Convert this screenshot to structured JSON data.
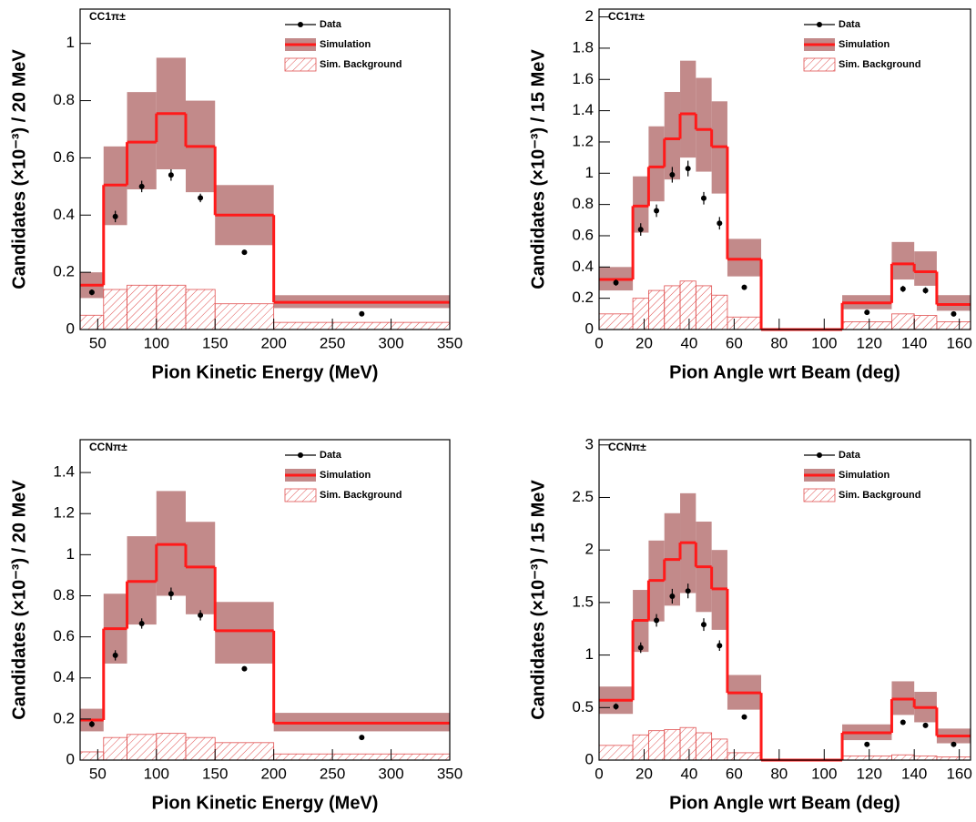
{
  "chart_data": [
    {
      "type": "histogram",
      "label": "CC1π±",
      "xlabel": "Pion Kinetic Energy (MeV)",
      "ylabel": "Candidates (×10⁻³) / 20 MeV",
      "xlim": [
        35,
        350
      ],
      "xticks": [
        50,
        100,
        150,
        200,
        250,
        300,
        350
      ],
      "ylim": [
        0,
        1.12
      ],
      "yticks": [
        0,
        0.2,
        0.4,
        0.6,
        0.8,
        1
      ],
      "bins": [
        35,
        55,
        75,
        100,
        125,
        150,
        200,
        350
      ],
      "series": [
        {
          "name": "Data",
          "color": "#000000",
          "values": [
            0.13,
            0.395,
            0.5,
            0.54,
            0.46,
            0.27,
            0.055
          ],
          "errors": [
            0.01,
            0.02,
            0.02,
            0.02,
            0.015,
            0.008,
            0.003
          ]
        },
        {
          "name": "Simulation",
          "color": "#ff1a1a",
          "band_color": "#c28a8a",
          "values": [
            0.155,
            0.505,
            0.655,
            0.755,
            0.64,
            0.4,
            0.095
          ],
          "band_lower": [
            0.11,
            0.365,
            0.49,
            0.56,
            0.48,
            0.295,
            0.075
          ],
          "band_upper": [
            0.2,
            0.64,
            0.83,
            0.95,
            0.8,
            0.505,
            0.12
          ]
        },
        {
          "name": "Sim. Background",
          "color": "#e05050",
          "values": [
            0.05,
            0.14,
            0.155,
            0.155,
            0.14,
            0.09,
            0.025
          ]
        }
      ]
    },
    {
      "type": "histogram",
      "label": "CC1π±",
      "xlabel": "Pion Angle wrt Beam (deg)",
      "ylabel": "Candidates (×10⁻³) / 15 MeV",
      "xlim": [
        0,
        165
      ],
      "xticks": [
        0,
        20,
        40,
        60,
        80,
        100,
        120,
        140,
        160
      ],
      "ylim": [
        0,
        2.05
      ],
      "yticks": [
        0,
        0.2,
        0.4,
        0.6,
        0.8,
        1,
        1.2,
        1.4,
        1.6,
        1.8,
        2
      ],
      "bins": [
        0,
        15,
        22,
        29,
        36,
        43,
        50,
        57,
        72,
        108,
        130,
        140,
        150,
        165
      ],
      "series": [
        {
          "name": "Data",
          "color": "#000000",
          "values": [
            0.3,
            0.64,
            0.76,
            0.99,
            1.03,
            0.84,
            0.68,
            0.27,
            null,
            0.11,
            0.26,
            0.25,
            0.1
          ],
          "errors": [
            0.02,
            0.04,
            0.04,
            0.05,
            0.05,
            0.04,
            0.04,
            0.015,
            null,
            0.01,
            0.02,
            0.02,
            0.01
          ]
        },
        {
          "name": "Simulation",
          "color": "#ff1a1a",
          "band_color": "#c28a8a",
          "values": [
            0.32,
            0.79,
            1.04,
            1.22,
            1.38,
            1.28,
            1.17,
            0.45,
            0,
            0.17,
            0.42,
            0.37,
            0.16
          ],
          "band_lower": [
            0.25,
            0.62,
            0.82,
            0.96,
            1.1,
            1.01,
            0.87,
            0.34,
            0,
            0.13,
            0.32,
            0.28,
            0.12
          ],
          "band_upper": [
            0.4,
            0.98,
            1.3,
            1.52,
            1.72,
            1.61,
            1.46,
            0.58,
            0,
            0.22,
            0.56,
            0.5,
            0.22
          ]
        },
        {
          "name": "Sim. Background",
          "color": "#e05050",
          "values": [
            0.1,
            0.2,
            0.25,
            0.28,
            0.31,
            0.28,
            0.22,
            0.08,
            0,
            0.05,
            0.1,
            0.09,
            0.05
          ]
        }
      ]
    },
    {
      "type": "histogram",
      "label": "CCNπ±",
      "xlabel": "Pion Kinetic Energy (MeV)",
      "ylabel": "Candidates (×10⁻³) / 20 MeV",
      "xlim": [
        35,
        350
      ],
      "xticks": [
        50,
        100,
        150,
        200,
        250,
        300,
        350
      ],
      "ylim": [
        0,
        1.56
      ],
      "yticks": [
        0,
        0.2,
        0.4,
        0.6,
        0.8,
        1,
        1.2,
        1.4
      ],
      "bins": [
        35,
        55,
        75,
        100,
        125,
        150,
        200,
        350
      ],
      "series": [
        {
          "name": "Data",
          "color": "#000000",
          "values": [
            0.175,
            0.51,
            0.665,
            0.81,
            0.705,
            0.445,
            0.11
          ],
          "errors": [
            0.015,
            0.025,
            0.025,
            0.03,
            0.025,
            0.01,
            0.005
          ]
        },
        {
          "name": "Simulation",
          "color": "#ff1a1a",
          "band_color": "#c28a8a",
          "values": [
            0.195,
            0.64,
            0.87,
            1.05,
            0.94,
            0.63,
            0.18
          ],
          "band_lower": [
            0.14,
            0.47,
            0.66,
            0.8,
            0.71,
            0.47,
            0.14
          ],
          "band_upper": [
            0.25,
            0.81,
            1.09,
            1.31,
            1.16,
            0.77,
            0.23
          ]
        },
        {
          "name": "Sim. Background",
          "color": "#e05050",
          "values": [
            0.04,
            0.11,
            0.125,
            0.13,
            0.11,
            0.085,
            0.03
          ]
        }
      ]
    },
    {
      "type": "histogram",
      "label": "CCNπ±",
      "xlabel": "Pion Angle wrt Beam (deg)",
      "ylabel": "Candidates (×10⁻³) / 15 MeV",
      "xlim": [
        0,
        165
      ],
      "xticks": [
        0,
        20,
        40,
        60,
        80,
        100,
        120,
        140,
        160
      ],
      "ylim": [
        0,
        3.05
      ],
      "yticks": [
        0,
        0.5,
        1,
        1.5,
        2,
        2.5,
        3
      ],
      "bins": [
        0,
        15,
        22,
        29,
        36,
        43,
        50,
        57,
        72,
        108,
        130,
        140,
        150,
        165
      ],
      "series": [
        {
          "name": "Data",
          "color": "#000000",
          "values": [
            0.51,
            1.07,
            1.33,
            1.56,
            1.61,
            1.29,
            1.09,
            0.41,
            null,
            0.15,
            0.36,
            0.33,
            0.15
          ],
          "errors": [
            0.03,
            0.05,
            0.06,
            0.07,
            0.07,
            0.06,
            0.05,
            0.02,
            null,
            0.01,
            0.02,
            0.02,
            0.01
          ]
        },
        {
          "name": "Simulation",
          "color": "#ff1a1a",
          "band_color": "#c28a8a",
          "values": [
            0.57,
            1.33,
            1.71,
            1.91,
            2.07,
            1.84,
            1.63,
            0.64,
            0,
            0.26,
            0.58,
            0.5,
            0.23
          ],
          "band_lower": [
            0.44,
            1.03,
            1.32,
            1.47,
            1.59,
            1.41,
            1.24,
            0.48,
            0,
            0.19,
            0.43,
            0.36,
            0.16
          ],
          "band_upper": [
            0.7,
            1.62,
            2.09,
            2.35,
            2.54,
            2.27,
            2.0,
            0.81,
            0,
            0.34,
            0.75,
            0.65,
            0.3
          ]
        },
        {
          "name": "Sim. Background",
          "color": "#e05050",
          "values": [
            0.14,
            0.24,
            0.28,
            0.29,
            0.31,
            0.26,
            0.2,
            0.07,
            0,
            0.04,
            0.05,
            0.04,
            0.03
          ]
        }
      ]
    }
  ]
}
